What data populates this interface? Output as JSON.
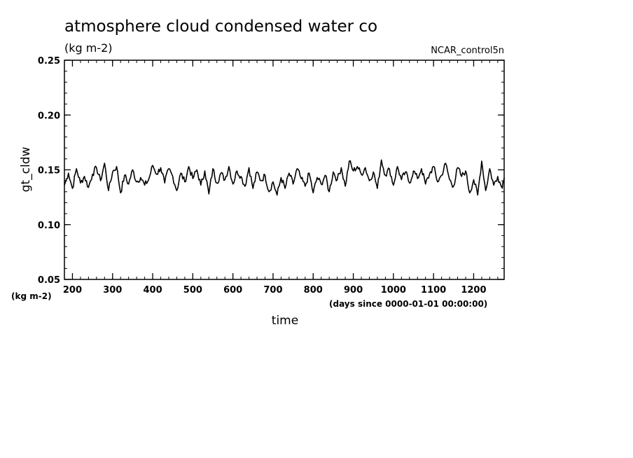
{
  "chart_data": {
    "type": "line",
    "title": "atmosphere cloud condensed water co",
    "subtitle": "(kg m-2)",
    "run_label": "NCAR_control5n",
    "xlabel": "time",
    "x_units": "(days since 0000-01-01 00:00:00)",
    "ylabel": "gt_cldw",
    "y_units": "(kg m-2)",
    "xlim": [
      180,
      1276
    ],
    "ylim": [
      0.05,
      0.25
    ],
    "x_ticks": [
      200,
      300,
      400,
      500,
      600,
      700,
      800,
      900,
      1000,
      1100,
      1200
    ],
    "x_tick_labels": [
      "200",
      "300",
      "400",
      "500",
      "600",
      "700",
      "800",
      "900",
      "1000",
      "1100",
      "1200"
    ],
    "y_ticks": [
      0.05,
      0.1,
      0.15,
      0.2,
      0.25
    ],
    "y_tick_labels": [
      "0.05",
      "0.10",
      "0.15",
      "0.20",
      "0.25"
    ],
    "x_minor_step": 20,
    "y_minor_step": 0.01,
    "grid": false,
    "line_color": "#000000",
    "series": [
      {
        "x": [
          180,
          190,
          200,
          210,
          220,
          230,
          240,
          250,
          260,
          270,
          280,
          290,
          300,
          310,
          320,
          330,
          340,
          350,
          360,
          370,
          380,
          390,
          400,
          410,
          420,
          430,
          440,
          450,
          460,
          470,
          480,
          490,
          500,
          510,
          520,
          530,
          540,
          550,
          560,
          570,
          580,
          590,
          600,
          610,
          620,
          630,
          640,
          650,
          660,
          670,
          680,
          690,
          700,
          710,
          720,
          730,
          740,
          750,
          760,
          770,
          780,
          790,
          800,
          810,
          820,
          830,
          840,
          850,
          860,
          870,
          880,
          890,
          900,
          910,
          920,
          930,
          940,
          950,
          960,
          970,
          980,
          990,
          1000,
          1010,
          1020,
          1030,
          1040,
          1050,
          1060,
          1070,
          1080,
          1090,
          1100,
          1110,
          1120,
          1130,
          1140,
          1150,
          1160,
          1170,
          1180,
          1190,
          1200,
          1210,
          1220,
          1230,
          1240,
          1250,
          1260,
          1270,
          1276
        ],
        "y": [
          0.136,
          0.147,
          0.133,
          0.151,
          0.138,
          0.144,
          0.134,
          0.146,
          0.152,
          0.14,
          0.156,
          0.131,
          0.148,
          0.153,
          0.129,
          0.145,
          0.137,
          0.15,
          0.139,
          0.143,
          0.136,
          0.141,
          0.154,
          0.146,
          0.152,
          0.138,
          0.151,
          0.144,
          0.131,
          0.147,
          0.139,
          0.153,
          0.142,
          0.15,
          0.136,
          0.149,
          0.128,
          0.151,
          0.138,
          0.147,
          0.141,
          0.153,
          0.137,
          0.149,
          0.144,
          0.135,
          0.152,
          0.133,
          0.148,
          0.14,
          0.145,
          0.13,
          0.139,
          0.127,
          0.143,
          0.133,
          0.147,
          0.137,
          0.151,
          0.142,
          0.135,
          0.147,
          0.129,
          0.143,
          0.137,
          0.145,
          0.13,
          0.148,
          0.141,
          0.152,
          0.135,
          0.158,
          0.149,
          0.153,
          0.146,
          0.152,
          0.14,
          0.148,
          0.133,
          0.159,
          0.145,
          0.151,
          0.136,
          0.153,
          0.141,
          0.148,
          0.138,
          0.149,
          0.142,
          0.151,
          0.137,
          0.146,
          0.153,
          0.139,
          0.145,
          0.156,
          0.141,
          0.135,
          0.152,
          0.144,
          0.149,
          0.129,
          0.141,
          0.127,
          0.158,
          0.131,
          0.151,
          0.136,
          0.144,
          0.134,
          0.143
        ]
      }
    ]
  }
}
